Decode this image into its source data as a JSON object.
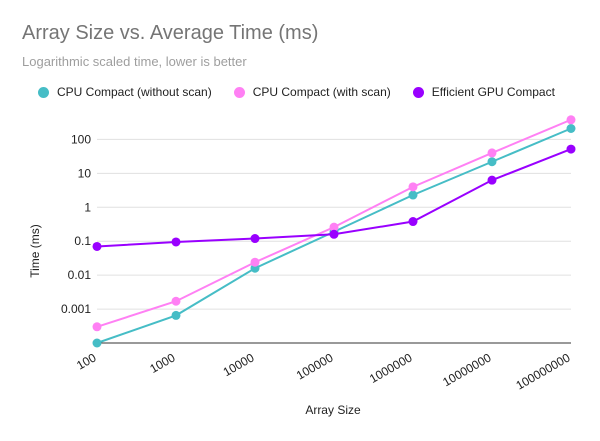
{
  "chart_data": {
    "type": "line",
    "title": "Array Size vs. Average Time (ms)",
    "subtitle": "Logarithmic scaled time, lower is better",
    "xlabel": "Array Size",
    "ylabel": "Time (ms)",
    "yscale": "log",
    "ylim": [
      0.0001,
      400
    ],
    "categories": [
      "100",
      "1000",
      "10000",
      "100000",
      "1000000",
      "10000000",
      "100000000"
    ],
    "yticks": [
      0.001,
      0.01,
      0.1,
      1,
      10,
      100
    ],
    "ytick_labels": [
      "0.001",
      "0.01",
      "0.1",
      "1",
      "10",
      "100"
    ],
    "legend_position": "top",
    "series": [
      {
        "name": "CPU Compact (without scan)",
        "color": "#46bdc6",
        "values": [
          0.0001,
          0.00065,
          0.016,
          0.19,
          2.3,
          22,
          210
        ]
      },
      {
        "name": "CPU Compact (with scan)",
        "color": "#ff80f4",
        "values": [
          0.0003,
          0.0017,
          0.024,
          0.26,
          4.0,
          40,
          380
        ]
      },
      {
        "name": "Efficient GPU Compact",
        "color": "#9900ff",
        "values": [
          0.07,
          0.095,
          0.12,
          0.16,
          0.38,
          6.3,
          52
        ]
      }
    ]
  }
}
